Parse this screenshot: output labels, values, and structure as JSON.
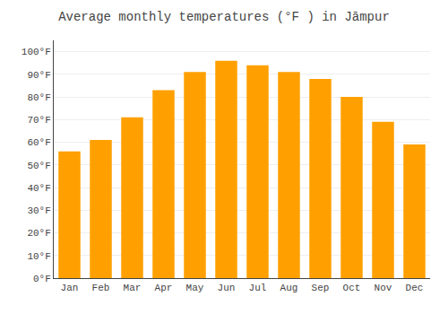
{
  "chart_data": {
    "type": "bar",
    "title": "Average monthly temperatures (°F ) in Jāmpur",
    "categories": [
      "Jan",
      "Feb",
      "Mar",
      "Apr",
      "May",
      "Jun",
      "Jul",
      "Aug",
      "Sep",
      "Oct",
      "Nov",
      "Dec"
    ],
    "values": [
      56,
      61,
      71,
      83,
      91,
      96,
      94,
      91,
      88,
      80,
      69,
      59
    ],
    "color": "#FFA000",
    "ylim": [
      0,
      105
    ],
    "yticks": [
      {
        "value": 0,
        "label": "0°F"
      },
      {
        "value": 10,
        "label": "10°F"
      },
      {
        "value": 20,
        "label": "20°F"
      },
      {
        "value": 30,
        "label": "30°F"
      },
      {
        "value": 40,
        "label": "40°F"
      },
      {
        "value": 50,
        "label": "50°F"
      },
      {
        "value": 60,
        "label": "60°F"
      },
      {
        "value": 70,
        "label": "70°F"
      },
      {
        "value": 80,
        "label": "80°F"
      },
      {
        "value": 90,
        "label": "90°F"
      },
      {
        "value": 100,
        "label": "100°F"
      }
    ],
    "grid": true
  }
}
